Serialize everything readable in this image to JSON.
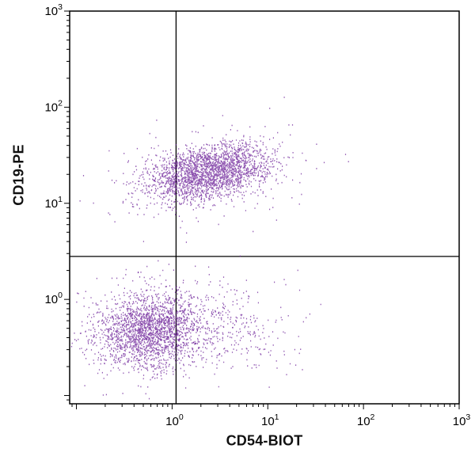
{
  "chart_data": {
    "type": "scatter",
    "title": "",
    "xlabel": "CD54-BIOT",
    "ylabel": "CD19-PE",
    "x_scale": "log",
    "y_scale": "log",
    "xlim": [
      0.085,
      1000
    ],
    "ylim": [
      0.082,
      1000
    ],
    "x_ticks": [
      1,
      10,
      100,
      1000
    ],
    "y_ticks": [
      1,
      10,
      100,
      1000
    ],
    "grid": false,
    "legend": "none",
    "background_color": "#ffffff",
    "axis_color": "#000000",
    "point_color": "#5e0c8f",
    "quadrant_gate": {
      "x": 1.1,
      "y": 2.8
    },
    "clusters": [
      {
        "name": "cd19-positive-core",
        "cx": 2.4,
        "cy": 21,
        "sdx": 0.33,
        "sdy": 0.15,
        "rho": 0.35,
        "n": 2400
      },
      {
        "name": "cd19-positive-halo",
        "cx": 2.3,
        "cy": 20,
        "sdx": 0.6,
        "sdy": 0.33,
        "rho": 0.25,
        "n": 140
      },
      {
        "name": "cd19-negative-core",
        "cx": 0.55,
        "cy": 0.48,
        "sdx": 0.27,
        "sdy": 0.2,
        "rho": 0.12,
        "n": 2000
      },
      {
        "name": "cd19-negative-tail",
        "cx": 2.6,
        "cy": 0.5,
        "sdx": 0.45,
        "sdy": 0.22,
        "rho": 0.0,
        "n": 430
      },
      {
        "name": "cd19-negative-halo",
        "cx": 0.75,
        "cy": 0.55,
        "sdx": 0.55,
        "sdy": 0.38,
        "rho": 0.0,
        "n": 130
      }
    ]
  }
}
